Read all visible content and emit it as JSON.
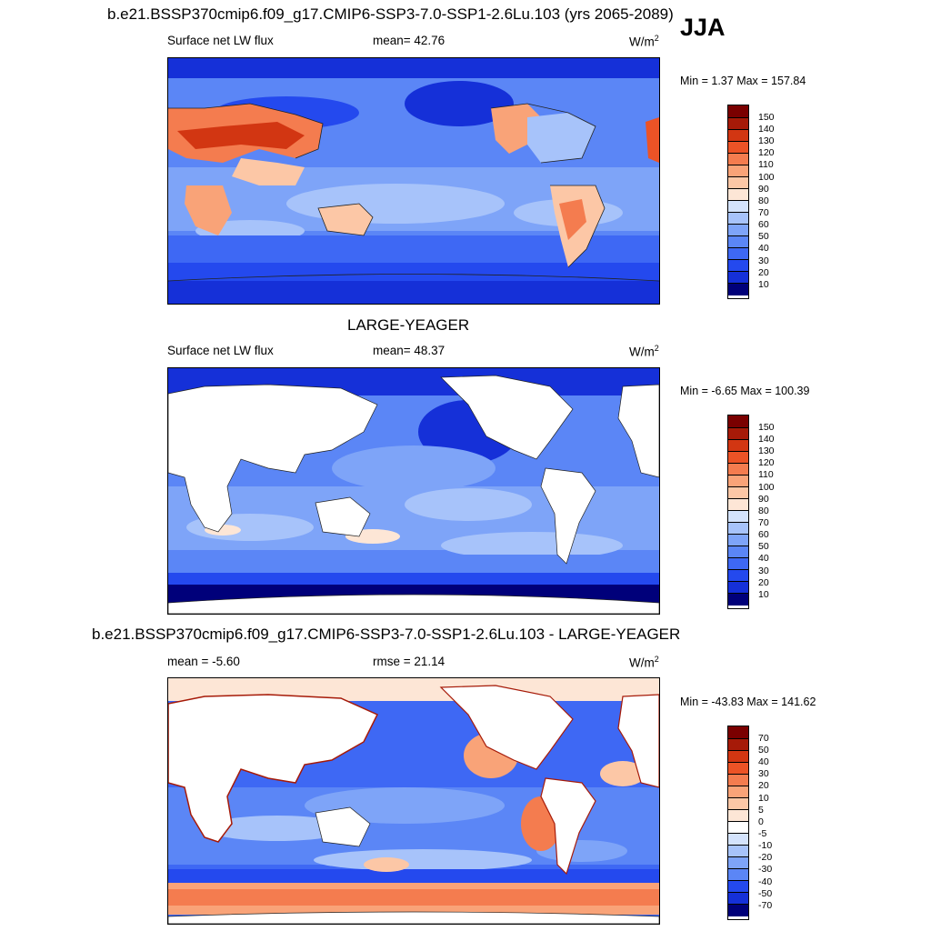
{
  "page": {
    "season": "JJA",
    "main_title": "b.e21.BSSP370cmip6.f09_g17.CMIP6-SSP3-7.0-SSP1-2.6Lu.103 (yrs 2065-2089)"
  },
  "panels": [
    {
      "title": "",
      "left_label": "Surface net LW flux",
      "center_label": "mean=  42.76",
      "units": "W/m",
      "units_sup": "2",
      "minmax": "Min =   1.37 Max = 157.84",
      "colorbar_labels": [
        "150",
        "140",
        "130",
        "120",
        "110",
        "100",
        "90",
        "80",
        "70",
        "60",
        "50",
        "40",
        "30",
        "20",
        "10"
      ]
    },
    {
      "title": "LARGE-YEAGER",
      "left_label": "Surface net LW flux",
      "center_label": "mean=  48.37",
      "units": "W/m",
      "units_sup": "2",
      "minmax": "Min =  -6.65 Max = 100.39",
      "colorbar_labels": [
        "150",
        "140",
        "130",
        "120",
        "110",
        "100",
        "90",
        "80",
        "70",
        "60",
        "50",
        "40",
        "30",
        "20",
        "10"
      ]
    },
    {
      "title": "b.e21.BSSP370cmip6.f09_g17.CMIP6-SSP3-7.0-SSP1-2.6Lu.103 - LARGE-YEAGER",
      "left_label": "mean =  -5.60",
      "center_label": "rmse =  21.14",
      "units": "W/m",
      "units_sup": "2",
      "minmax": "Min = -43.83 Max = 141.62",
      "colorbar_labels": [
        "70",
        "50",
        "40",
        "30",
        "20",
        "10",
        "5",
        "0",
        "-5",
        "-10",
        "-20",
        "-30",
        "-40",
        "-50",
        "-70"
      ]
    }
  ],
  "colors": {
    "abs_scale": [
      "#00007a",
      "#0a1aa8",
      "#1530d8",
      "#2449ee",
      "#3e68f4",
      "#5b86f6",
      "#7ea4f8",
      "#a7c3fa",
      "#d4e3fc",
      "#fde6d6",
      "#fcc7a6",
      "#f9a378",
      "#f47c4f",
      "#ec5326",
      "#d23612",
      "#a61a08",
      "#7a0000"
    ],
    "diff_scale": [
      "#00007a",
      "#0a1aa8",
      "#1530d8",
      "#2449ee",
      "#3e68f4",
      "#5b86f6",
      "#7ea4f8",
      "#a7c3fa",
      "#d4e3fc",
      "#ffffff",
      "#fde6d6",
      "#fcc7a6",
      "#f9a378",
      "#f47c4f",
      "#ec5326",
      "#a61a08",
      "#7a0000"
    ]
  }
}
